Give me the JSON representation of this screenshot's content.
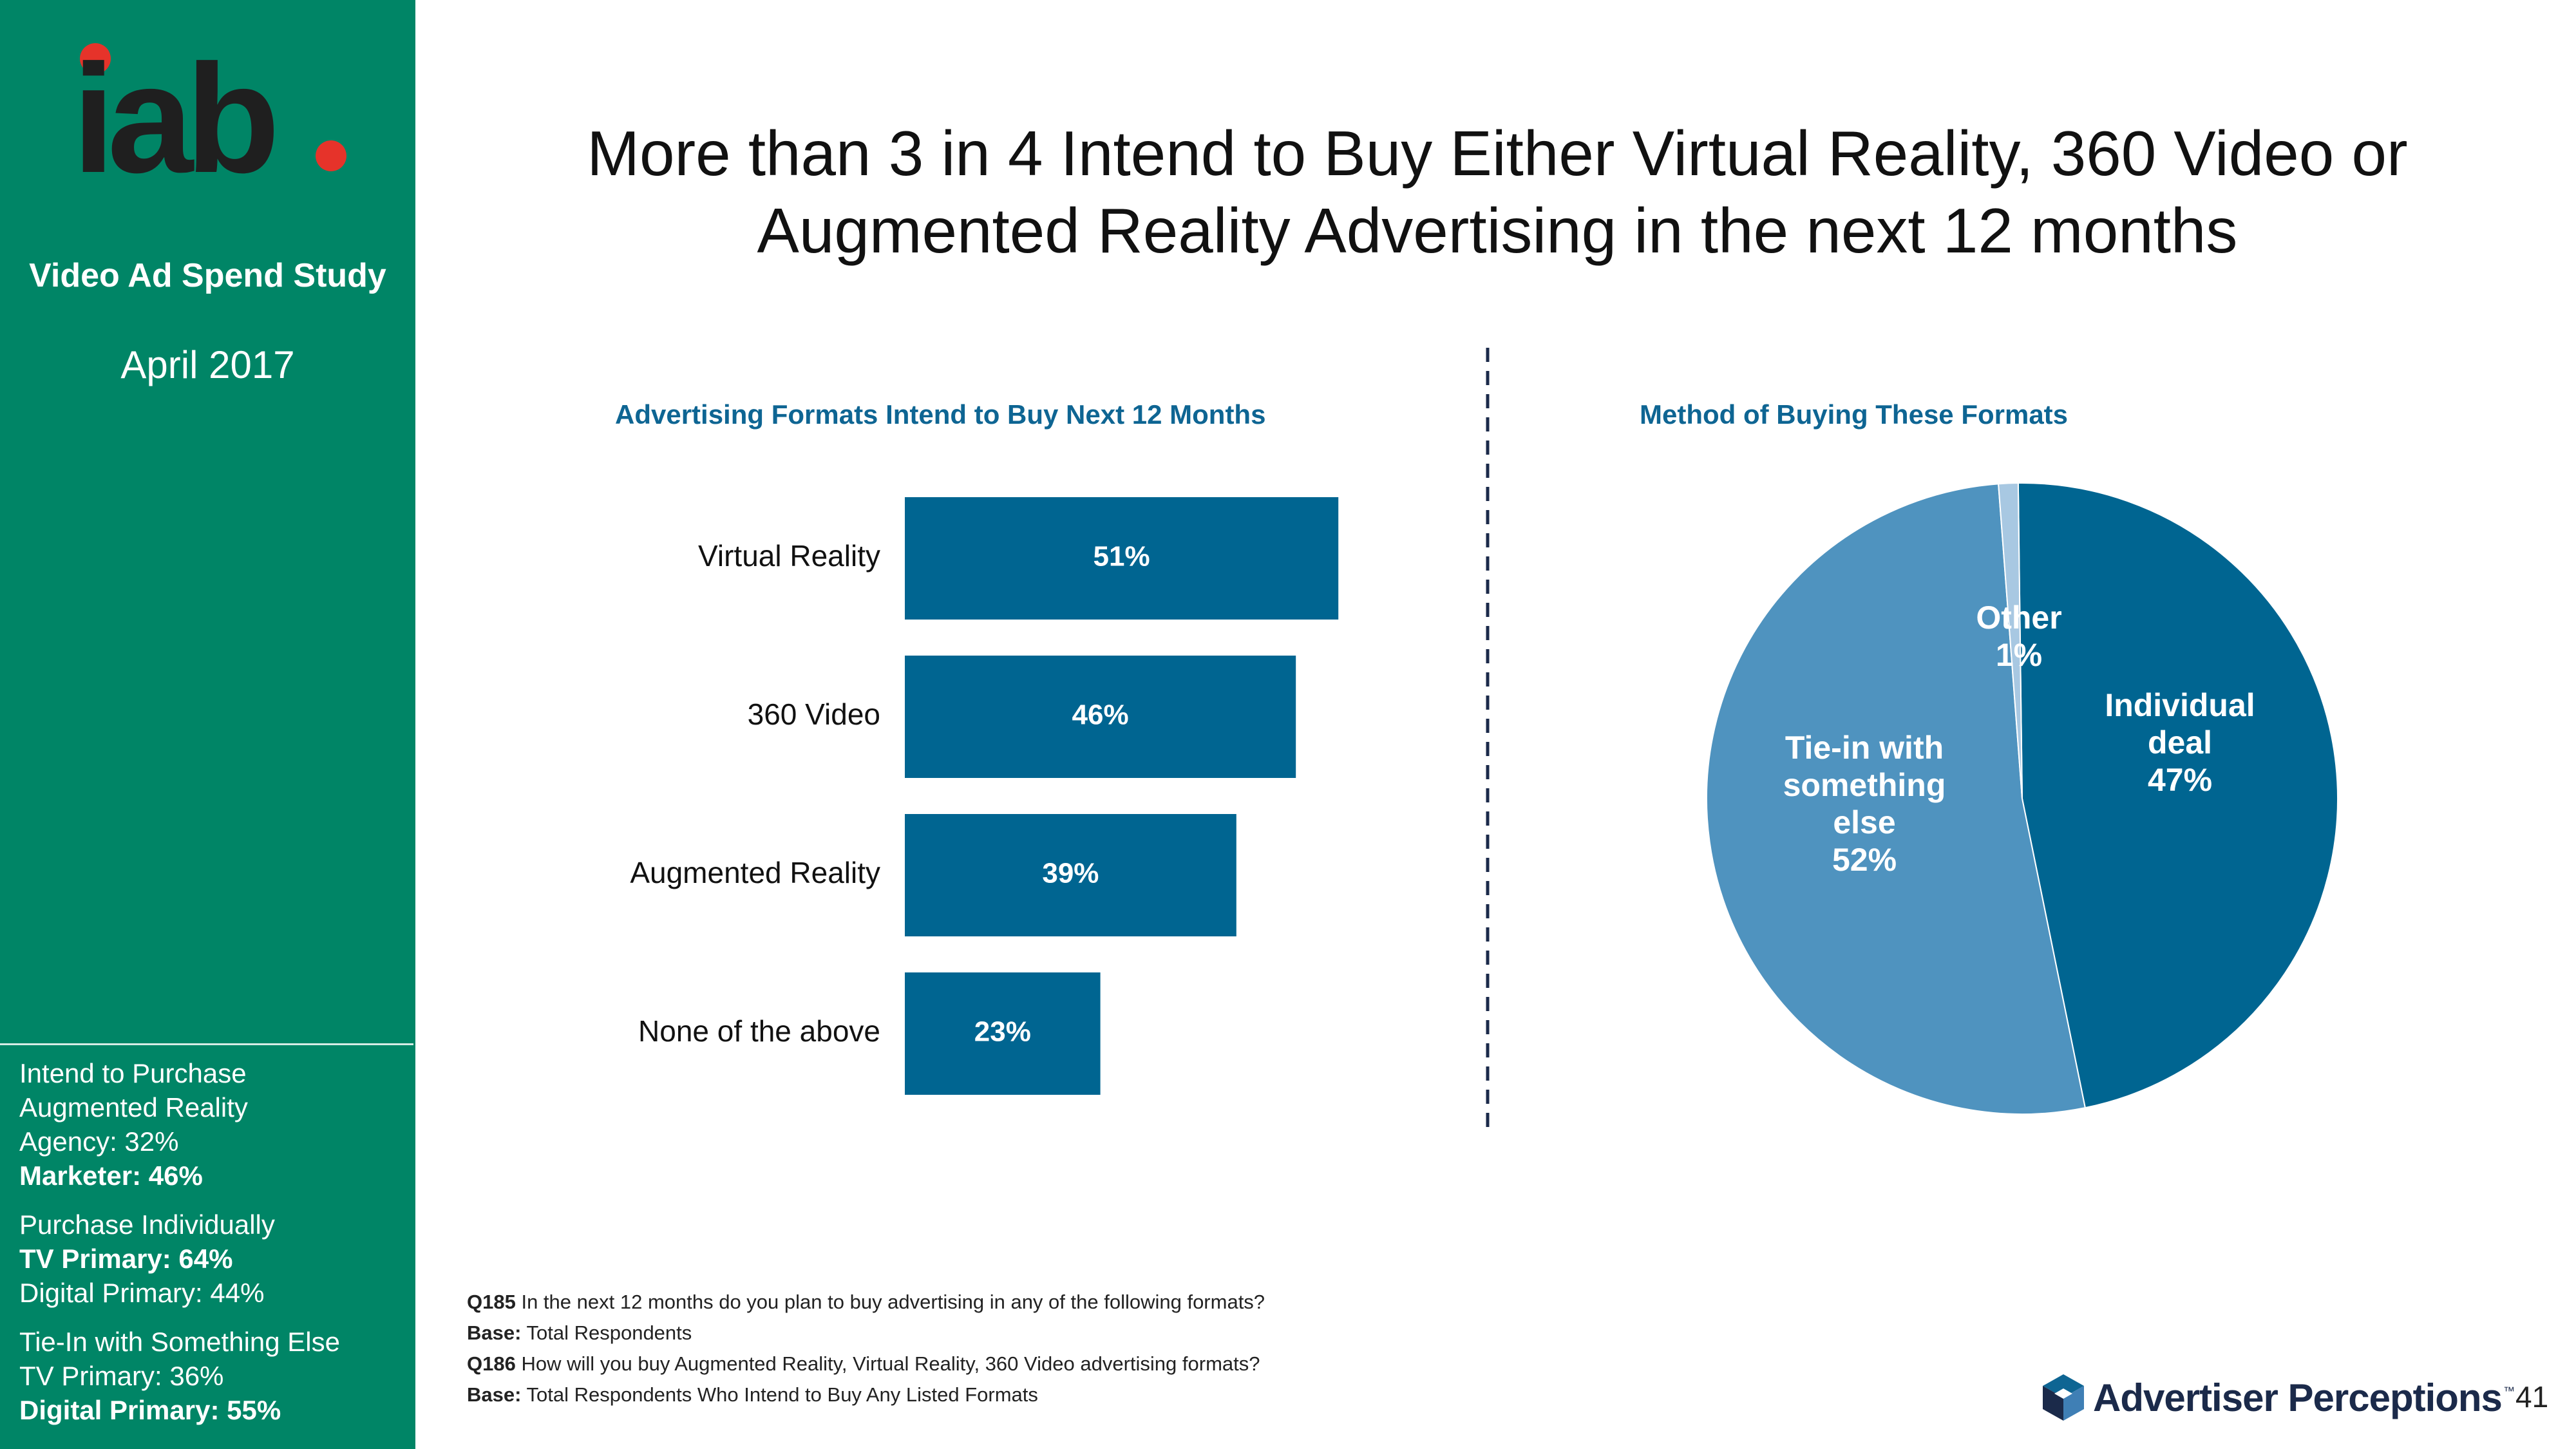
{
  "sidebar": {
    "logo_text": "iab",
    "study_title": "Video Ad Spend Study",
    "date": "April 2017",
    "blocks": [
      {
        "lines": [
          {
            "text": "Intend to Purchase",
            "bold": false
          },
          {
            "text": "Augmented Reality",
            "bold": false
          },
          {
            "text": "Agency: 32%",
            "bold": false
          },
          {
            "text": "Marketer: 46%",
            "bold": true
          }
        ]
      },
      {
        "lines": [
          {
            "text": "Purchase Individually",
            "bold": false
          },
          {
            "text": "TV Primary: 64%",
            "bold": true
          },
          {
            "text": "Digital Primary: 44%",
            "bold": false
          }
        ]
      },
      {
        "lines": [
          {
            "text": "Tie-In with Something Else",
            "bold": false
          },
          {
            "text": "TV Primary: 36%",
            "bold": false
          },
          {
            "text": "Digital Primary: 55%",
            "bold": true
          }
        ]
      }
    ]
  },
  "title": {
    "line1": "More than 3 in 4 Intend to Buy Either Virtual Reality, 360 Video or",
    "line2": "Augmented Reality Advertising in the next 12 months"
  },
  "colors": {
    "sidebar_green": "#008566",
    "bar_blue": "#006591",
    "pie_dark": "#006591",
    "pie_light": "#4f93bf",
    "pie_other": "#a8c8e2",
    "subtitle_blue": "#0e6593",
    "divider_navy": "#1b2a4a"
  },
  "chart_data": [
    {
      "type": "bar",
      "orientation": "horizontal",
      "title": "Advertising Formats Intend to Buy Next 12 Months",
      "categories": [
        "Virtual Reality",
        "360 Video",
        "Augmented Reality",
        "None of the above"
      ],
      "values": [
        51,
        46,
        39,
        23
      ],
      "value_labels": [
        "51%",
        "46%",
        "39%",
        "23%"
      ],
      "unit": "%",
      "grid": false
    },
    {
      "type": "pie",
      "title": "Method of Buying These Formats",
      "slices": [
        {
          "label_lines": [
            "Individual",
            "deal"
          ],
          "value": 47,
          "value_label": "47%"
        },
        {
          "label_lines": [
            "Tie-in with",
            "something",
            "else"
          ],
          "value": 52,
          "value_label": "52%"
        },
        {
          "label_lines": [
            "Other"
          ],
          "value": 1,
          "value_label": "1%"
        }
      ]
    }
  ],
  "footnotes": [
    {
      "code": "Q185",
      "text": "In the next 12 months do you plan to buy advertising in any of the following formats?"
    },
    {
      "code": "Base:",
      "text": "Total Respondents"
    },
    {
      "code": "Q186",
      "text": "How will you buy Augmented Reality, Virtual Reality, 360 Video advertising formats?"
    },
    {
      "code": "Base:",
      "text": "Total Respondents Who Intend to Buy Any  Listed Formats"
    }
  ],
  "branding": {
    "name": "Advertiser Perceptions",
    "tm": "™",
    "icon": "cube-icon"
  },
  "page_number": "41"
}
